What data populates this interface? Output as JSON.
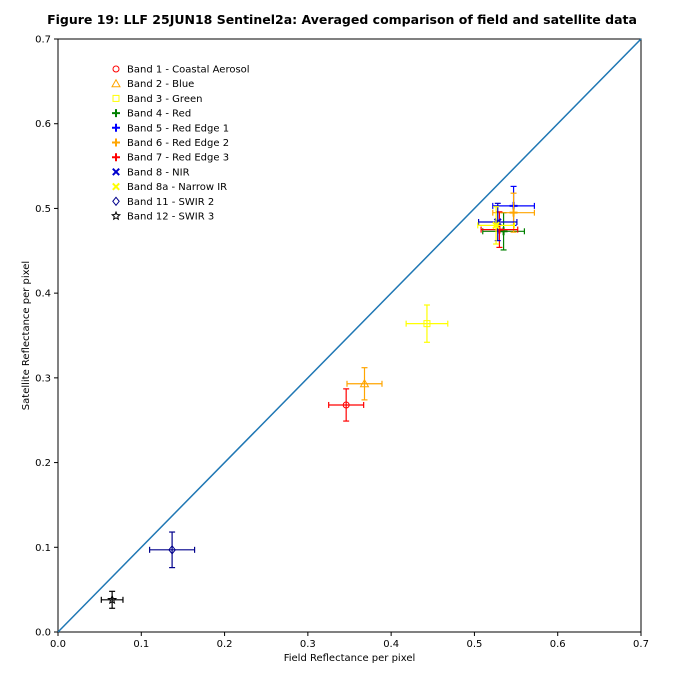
{
  "chart_data": {
    "type": "scatter",
    "title": "Figure 19: LLF 25JUN18  Sentinel2a: Averaged comparison of field and satellite data",
    "xlabel": "Field Reflectance per pixel",
    "ylabel": "Satellite Reflectance per pixel",
    "xlim": [
      0.0,
      0.7
    ],
    "ylim": [
      0.0,
      0.7
    ],
    "xticks": [
      "0.0",
      "0.1",
      "0.2",
      "0.3",
      "0.4",
      "0.5",
      "0.6",
      "0.7"
    ],
    "yticks": [
      "0.0",
      "0.1",
      "0.2",
      "0.3",
      "0.4",
      "0.5",
      "0.6",
      "0.7"
    ],
    "grid": false,
    "legend_position": "upper-left",
    "reference_line": {
      "x": [
        0.0,
        0.7
      ],
      "y": [
        0.0,
        0.7
      ],
      "color": "#1f77b4"
    },
    "series": [
      {
        "name": "Band 1 - Coastal Aerosol",
        "marker": "circle",
        "color": "#ff0000",
        "x": 0.346,
        "y": 0.268,
        "xerr": 0.021,
        "yerr": 0.019
      },
      {
        "name": "Band 2 - Blue",
        "marker": "triangle",
        "color": "#ffa500",
        "x": 0.368,
        "y": 0.293,
        "xerr": 0.021,
        "yerr": 0.019
      },
      {
        "name": "Band 3 - Green",
        "marker": "square",
        "color": "#ffff00",
        "x": 0.443,
        "y": 0.364,
        "xerr": 0.025,
        "yerr": 0.022
      },
      {
        "name": "Band 4 - Red",
        "marker": "plus",
        "color": "#008000",
        "x": 0.535,
        "y": 0.473,
        "xerr": 0.025,
        "yerr": 0.022
      },
      {
        "name": "Band 5 - Red Edge 1",
        "marker": "plus",
        "color": "#0000ff",
        "x": 0.547,
        "y": 0.503,
        "xerr": 0.025,
        "yerr": 0.023
      },
      {
        "name": "Band 6 - Red Edge 2",
        "marker": "plus",
        "color": "#ffa500",
        "x": 0.547,
        "y": 0.495,
        "xerr": 0.025,
        "yerr": 0.023
      },
      {
        "name": "Band 7 - Red Edge 3",
        "marker": "plus",
        "color": "#ff0000",
        "x": 0.53,
        "y": 0.475,
        "xerr": 0.022,
        "yerr": 0.021
      },
      {
        "name": "Band 8 - NIR",
        "marker": "x",
        "color": "#0000cc",
        "x": 0.528,
        "y": 0.484,
        "xerr": 0.023,
        "yerr": 0.022
      },
      {
        "name": "Band 8a - Narrow IR",
        "marker": "x",
        "color": "#ffff00",
        "x": 0.526,
        "y": 0.48,
        "xerr": 0.022,
        "yerr": 0.022
      },
      {
        "name": "Band 11 - SWIR 2",
        "marker": "diamond",
        "color": "#00008b",
        "x": 0.137,
        "y": 0.097,
        "xerr": 0.027,
        "yerr": 0.021
      },
      {
        "name": "Band 12 - SWIR 3",
        "marker": "star",
        "color": "#000000",
        "x": 0.065,
        "y": 0.038,
        "xerr": 0.013,
        "yerr": 0.01
      }
    ]
  }
}
